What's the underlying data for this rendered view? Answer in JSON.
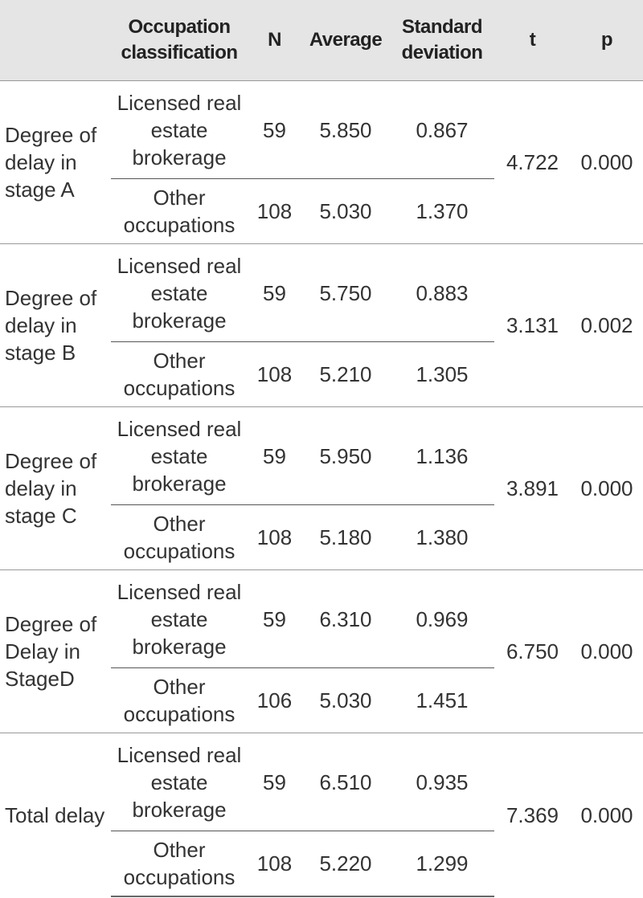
{
  "table": {
    "header": [
      "",
      "Occupation classification",
      "N",
      "Average",
      "Standard deviation",
      "t",
      "p"
    ],
    "groups": [
      {
        "label": "Degree of delay in stage A",
        "t": "4.722",
        "p": "0.000",
        "rows": [
          {
            "occupation": "Licensed real estate brokerage",
            "n": "59",
            "average": "5.850",
            "sd": "0.867"
          },
          {
            "occupation": "Other occupations",
            "n": "108",
            "average": "5.030",
            "sd": "1.370"
          }
        ]
      },
      {
        "label": "Degree of delay in stage B",
        "t": "3.131",
        "p": "0.002",
        "rows": [
          {
            "occupation": "Licensed real estate brokerage",
            "n": "59",
            "average": "5.750",
            "sd": "0.883"
          },
          {
            "occupation": "Other occupations",
            "n": "108",
            "average": "5.210",
            "sd": "1.305"
          }
        ]
      },
      {
        "label": "Degree of delay in stage C",
        "t": "3.891",
        "p": "0.000",
        "rows": [
          {
            "occupation": "Licensed real estate brokerage",
            "n": "59",
            "average": "5.950",
            "sd": "1.136"
          },
          {
            "occupation": "Other occupations",
            "n": "108",
            "average": "5.180",
            "sd": "1.380"
          }
        ]
      },
      {
        "label": "Degree of Delay in StageD",
        "t": "6.750",
        "p": "0.000",
        "rows": [
          {
            "occupation": "Licensed real estate brokerage",
            "n": "59",
            "average": "6.310",
            "sd": "0.969"
          },
          {
            "occupation": "Other occupations",
            "n": "106",
            "average": "5.030",
            "sd": "1.451"
          }
        ]
      },
      {
        "label": "Total delay",
        "t": "7.369",
        "p": "0.000",
        "rows": [
          {
            "occupation": "Licensed real estate brokerage",
            "n": "59",
            "average": "6.510",
            "sd": "0.935"
          },
          {
            "occupation": "Other occupations",
            "n": "108",
            "average": "5.220",
            "sd": "1.299"
          }
        ]
      }
    ]
  }
}
